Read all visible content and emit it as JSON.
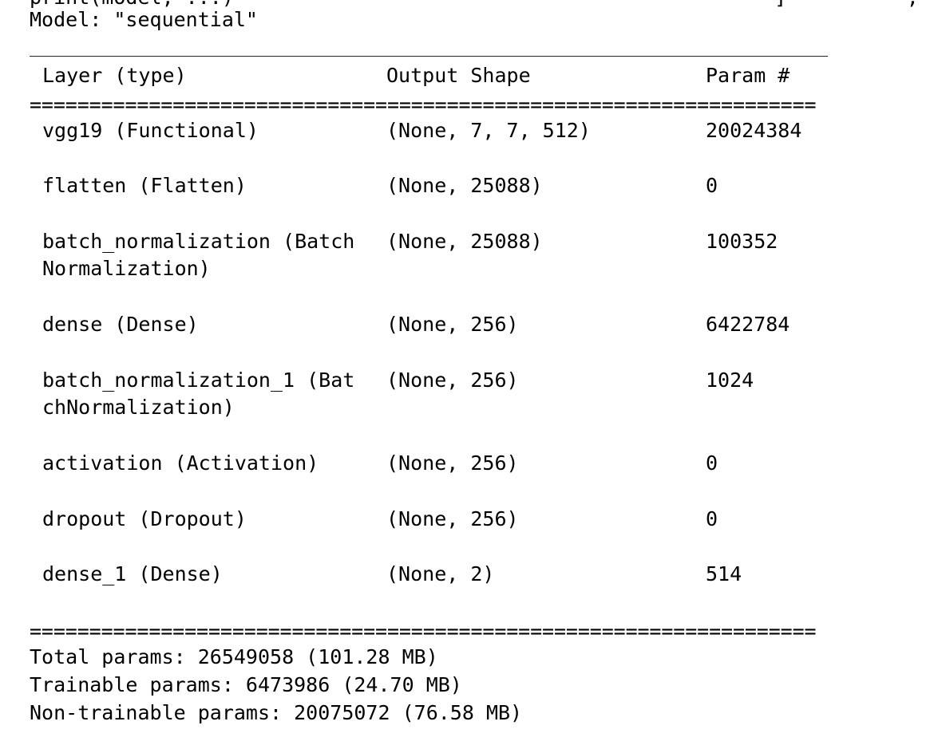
{
  "top_cut_text": "print(model, ...)                                             ]          ,   ",
  "model_line": "Model: \"sequential\"",
  "header": {
    "layer": "Layer (type)",
    "output_shape": "Output Shape",
    "param": "Param #"
  },
  "eq_rule": "==================================================================",
  "rows": [
    {
      "layer": "vgg19 (Functional)",
      "layer2": "",
      "shape": "(None, 7, 7, 512)",
      "param": "20024384"
    },
    {
      "layer": "flatten (Flatten)",
      "layer2": "",
      "shape": "(None, 25088)",
      "param": "0"
    },
    {
      "layer": "batch_normalization (Batch",
      "layer2": "Normalization)",
      "shape": "(None, 25088)",
      "param": "100352"
    },
    {
      "layer": "dense (Dense)",
      "layer2": "",
      "shape": "(None, 256)",
      "param": "6422784"
    },
    {
      "layer": "batch_normalization_1 (Bat",
      "layer2": "chNormalization)",
      "shape": "(None, 256)",
      "param": "1024"
    },
    {
      "layer": "activation (Activation)",
      "layer2": "",
      "shape": "(None, 256)",
      "param": "0"
    },
    {
      "layer": "dropout (Dropout)",
      "layer2": "",
      "shape": "(None, 256)",
      "param": "0"
    },
    {
      "layer": "dense_1 (Dense)",
      "layer2": "",
      "shape": "(None, 2)",
      "param": "514"
    }
  ],
  "totals": {
    "total": "Total params: 26549058 (101.28 MB)",
    "trainable": "Trainable params: 6473986 (24.70 MB)",
    "non_trainable": "Non-trainable params: 20075072 (76.58 MB)"
  }
}
